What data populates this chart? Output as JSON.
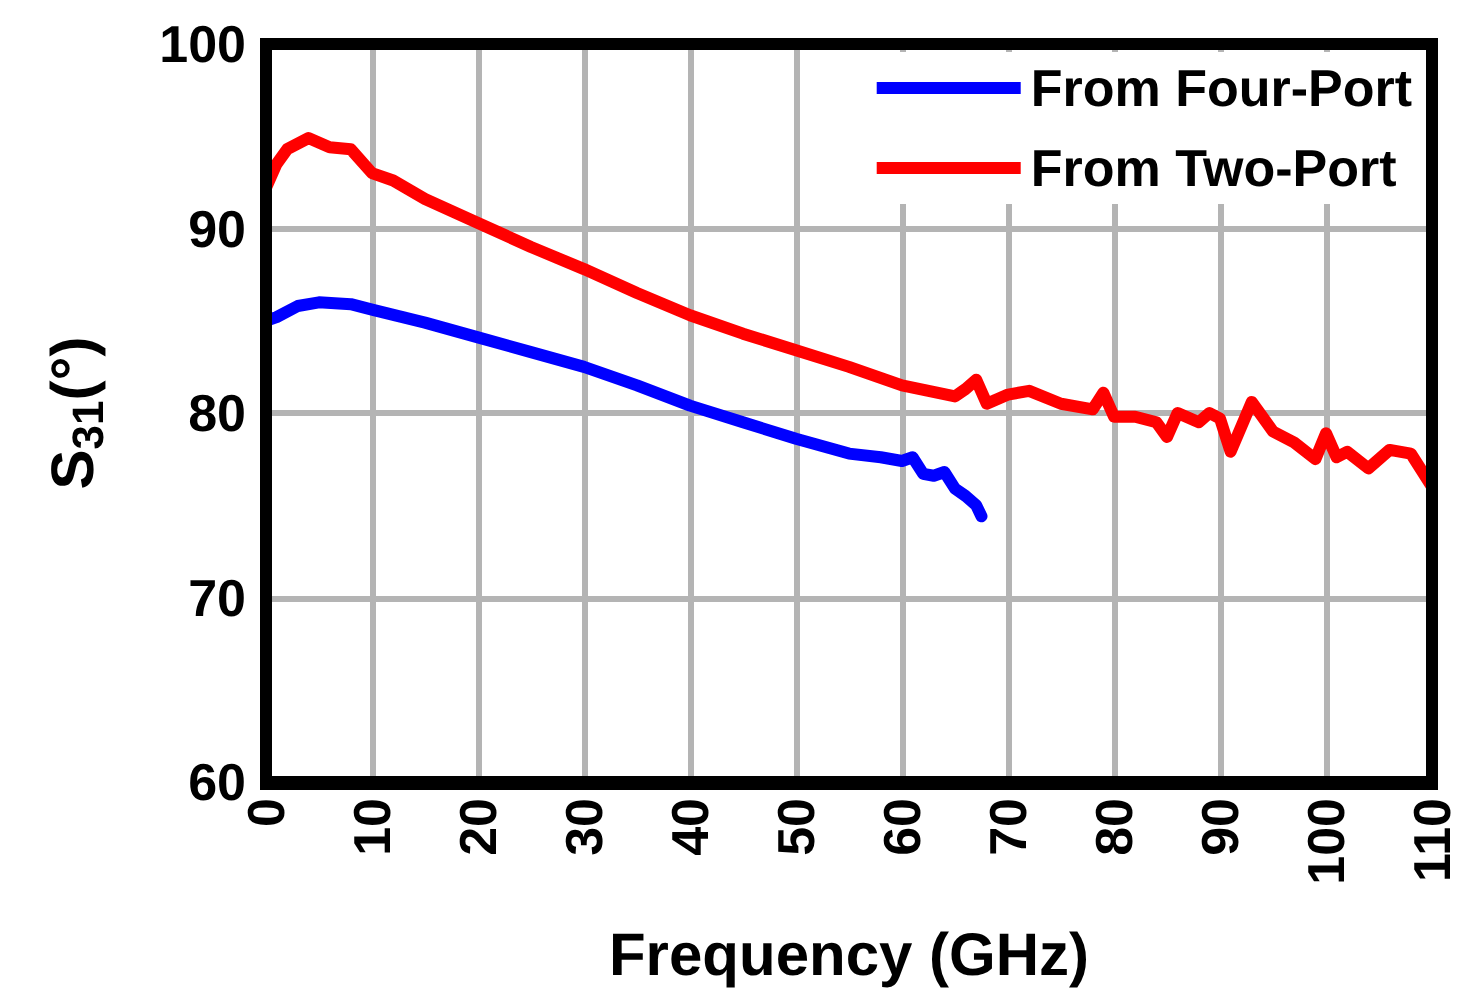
{
  "chart_data": {
    "type": "line",
    "xlabel": "Frequency (GHz)",
    "ylabel": "S$_{31}$(°)",
    "xlim": [
      0,
      110
    ],
    "xticks": [
      0,
      10,
      20,
      30,
      40,
      50,
      60,
      70,
      80,
      90,
      100,
      110
    ],
    "ylim": [
      60,
      100
    ],
    "yticks": [
      60,
      70,
      80,
      90,
      100
    ],
    "grid": true,
    "legend": "top right",
    "marker": "none",
    "line_style": "solid",
    "series": [
      {
        "name": "From Four-Port",
        "color": "#0000ff",
        "x": [
          0,
          1,
          3,
          5,
          8,
          10,
          15,
          20,
          25,
          30,
          35,
          40,
          45,
          50,
          55,
          58,
          60,
          61,
          62,
          63,
          64,
          65,
          66,
          67,
          67.5
        ],
        "values": [
          85.0,
          85.2,
          85.8,
          86.0,
          85.9,
          85.6,
          84.9,
          84.1,
          83.3,
          82.5,
          81.5,
          80.4,
          79.5,
          78.6,
          77.8,
          77.6,
          77.4,
          77.6,
          76.7,
          76.6,
          76.8,
          75.9,
          75.5,
          75.0,
          74.4
        ]
      },
      {
        "name": "From Two-Port",
        "color": "#ff0000",
        "x": [
          0,
          1,
          2,
          4,
          6,
          8,
          10,
          12,
          15,
          20,
          25,
          30,
          35,
          40,
          45,
          50,
          55,
          60,
          65,
          66,
          67,
          68,
          70,
          72,
          75,
          78,
          79,
          80,
          82,
          84,
          85,
          86,
          88,
          89,
          90,
          91,
          93,
          95,
          97,
          99,
          100,
          101,
          102,
          104,
          106,
          108,
          110
        ],
        "values": [
          92.2,
          93.5,
          94.3,
          94.9,
          94.4,
          94.3,
          93.0,
          92.6,
          91.6,
          90.3,
          89.0,
          87.8,
          86.5,
          85.3,
          84.3,
          83.4,
          82.5,
          81.5,
          80.9,
          81.3,
          81.8,
          80.5,
          81.0,
          81.2,
          80.5,
          80.2,
          81.1,
          79.8,
          79.8,
          79.5,
          78.7,
          80.0,
          79.5,
          80.0,
          79.7,
          77.9,
          80.6,
          79.0,
          78.4,
          77.5,
          78.9,
          77.6,
          77.9,
          77.0,
          78.0,
          77.8,
          76.0
        ]
      }
    ]
  }
}
